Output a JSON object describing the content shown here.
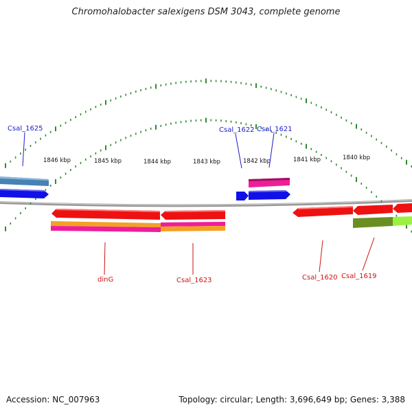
{
  "title": "Chromohalobacter salexigens DSM 3043, complete genome",
  "footer": {
    "accession": "Accession: NC_007963",
    "summary": "Topology: circular; Length: 3,696,649 bp; Genes: 3,388"
  },
  "scale_labels": [
    "1846 kbp",
    "1845 kbp",
    "1844 kbp",
    "1843 kbp",
    "1842 kbp",
    "1841 kbp",
    "1840 kbp"
  ],
  "gene_labels": {
    "csal_1625": "Csal_1625",
    "csal_1622": "Csal_1622",
    "csal_1621": "Csal_1621",
    "ding": "dinG",
    "csal_1623": "Csal_1623",
    "csal_1620": "Csal_1620",
    "csal_1619": "Csal_1619"
  },
  "colors": {
    "forward_label": "#1a1acc",
    "reverse_label": "#cc1111",
    "tick": "#2e8b2e",
    "backbone": "#888888",
    "cds_blue": "#1010e8",
    "cds_red": "#ee1111",
    "steelblue": "#4682b4",
    "magenta": "#ee1e9a",
    "orange": "#f3a025",
    "olive": "#6b8e23",
    "lime": "#9cf042"
  }
}
